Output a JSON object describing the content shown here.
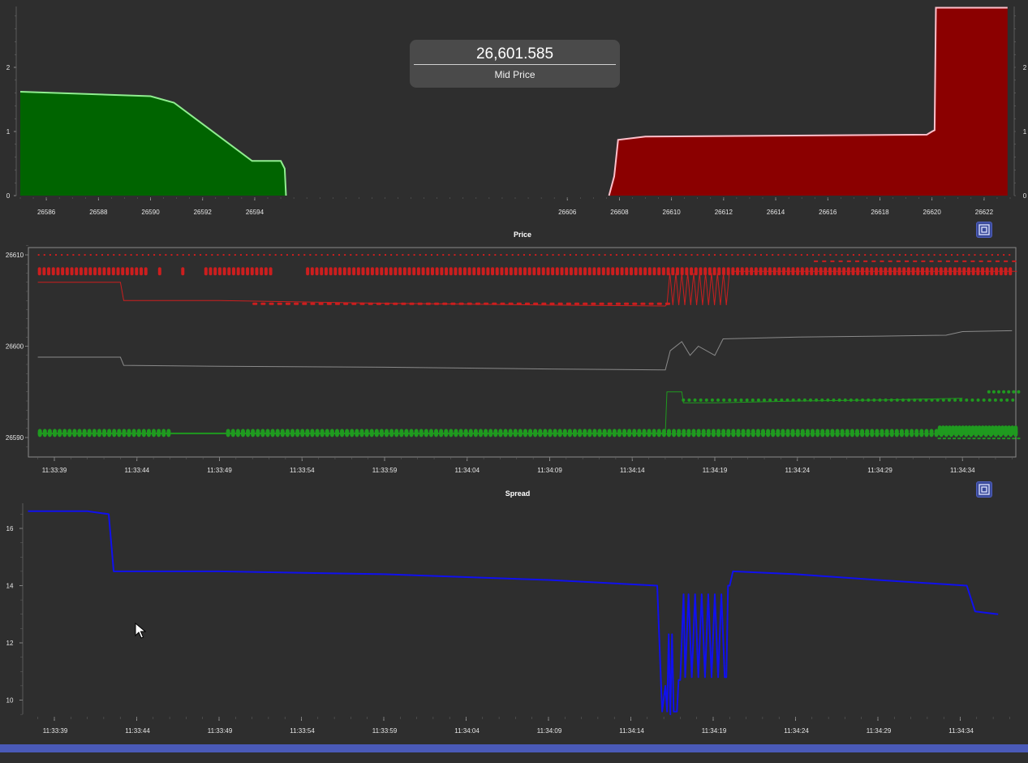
{
  "mid_price": {
    "value": "26,601.585",
    "label": "Mid Price"
  },
  "colors": {
    "bid_fill": "#006400",
    "bid_line": "#90ee90",
    "ask_fill": "#8b0000",
    "ask_line": "#ffc0cb",
    "ask_series": "#cc1e1e",
    "bid_series": "#1f9a1f",
    "mid_series": "#8a8a8a",
    "spread_series": "#1010ee"
  },
  "icons": {
    "reset_zoom": "reset-zoom-icon",
    "cursor": "mouse-pointer-icon"
  },
  "chart_data": [
    {
      "type": "area",
      "title": "",
      "xlim": [
        26585,
        26623
      ],
      "ylim": [
        0,
        3
      ],
      "yticks": [
        "0",
        "1",
        "2"
      ],
      "xticks": [
        "26586",
        "26588",
        "26590",
        "26592",
        "26594",
        "26606",
        "26608",
        "26610",
        "26612",
        "26614",
        "26616",
        "26618",
        "26620",
        "26622"
      ],
      "grid": false,
      "series": [
        {
          "side": "bid",
          "x": [
            26585,
            26590,
            26590.9,
            26593.9,
            26595,
            26595.15,
            26595.2
          ],
          "y": [
            1.62,
            1.55,
            1.45,
            0.54,
            0.54,
            0.42,
            0.0
          ]
        },
        {
          "side": "ask",
          "x": [
            26607.6,
            26607.8,
            26607.95,
            26609,
            26619.8,
            26620.0,
            26620.1,
            26620.15,
            26622.9
          ],
          "y": [
            0.0,
            0.3,
            0.87,
            0.92,
            0.95,
            1.0,
            1.02,
            2.93,
            2.93
          ]
        }
      ]
    },
    {
      "type": "line",
      "title": "Price",
      "ylim": [
        26588.9,
        26611.1
      ],
      "yticks": [
        "26590",
        "26600",
        "26610"
      ],
      "xticks": [
        "11:33:39",
        "11:33:44",
        "11:33:49",
        "11:33:54",
        "11:33:59",
        "11:34:04",
        "11:34:09",
        "11:34:14",
        "11:34:19",
        "11:34:24",
        "11:34:29",
        "11:34:34"
      ],
      "xlim_seconds_from_first_tick": [
        -1.5,
        58.7
      ],
      "grid": false,
      "series": [
        {
          "role": "ask",
          "line_x": [
            -1,
            4,
            4.2,
            10,
            20,
            30,
            37,
            37.1
          ],
          "line_y": [
            26607,
            26607,
            26605,
            26605,
            26604.7,
            26604.5,
            26604.4,
            26604.6
          ]
        },
        {
          "role": "mid",
          "x": [
            -1,
            4,
            4.2,
            10,
            20,
            30,
            37,
            37.3,
            38,
            38.5,
            39,
            40,
            40.5,
            45,
            50,
            54,
            55,
            58
          ],
          "y": [
            26598.8,
            26598.8,
            26597.9,
            26597.8,
            26597.7,
            26597.5,
            26597.4,
            26599.5,
            26600.5,
            26599,
            26600,
            26599,
            26600.8,
            26601,
            26601.1,
            26601.2,
            26601.6,
            26601.7
          ]
        },
        {
          "role": "bid",
          "line_x": [
            -1,
            37,
            37.1,
            38,
            38.1,
            40,
            45,
            50,
            55
          ],
          "line_y": [
            26590.5,
            26590.5,
            26595,
            26595,
            26593.8,
            26593.8,
            26594,
            26594.1,
            26594.3
          ]
        }
      ]
    },
    {
      "type": "line",
      "title": "Spread",
      "ylim": [
        9.5,
        16.8
      ],
      "yticks": [
        "10",
        "12",
        "14",
        "16"
      ],
      "xticks": [
        "11:33:39",
        "11:33:44",
        "11:33:49",
        "11:33:54",
        "11:33:59",
        "11:34:04",
        "11:34:09",
        "11:34:14",
        "11:34:19",
        "11:34:24",
        "11:34:29",
        "11:34:34"
      ],
      "xlim_seconds_from_first_tick": [
        -1.6,
        58.7
      ],
      "grid": false,
      "series": [
        {
          "role": "spread",
          "x": [
            -1.6,
            2,
            3.3,
            3.6,
            10,
            20,
            30,
            36.6,
            36.9,
            37.1,
            37.2,
            37.3,
            37.4,
            37.5,
            37.6,
            37.7,
            37.8,
            37.9,
            38.0,
            38.2,
            38.3,
            38.5,
            38.7,
            38.9,
            39.1,
            39.3,
            39.5,
            39.7,
            39.9,
            40.1,
            40.3,
            40.5,
            40.7,
            40.8,
            40.9,
            41.0,
            41.2,
            45,
            50,
            55.4,
            55.9,
            57.3
          ],
          "y": [
            16.6,
            16.6,
            16.5,
            14.5,
            14.5,
            14.4,
            14.2,
            14.0,
            9.6,
            10.5,
            9.6,
            12.3,
            9.5,
            12.3,
            9.6,
            9.6,
            9.6,
            10.7,
            10.7,
            13.7,
            10.8,
            13.7,
            10.8,
            13.7,
            10.8,
            13.7,
            10.8,
            13.7,
            10.8,
            13.7,
            10.8,
            13.7,
            10.8,
            10.8,
            14.0,
            14.0,
            14.5,
            14.4,
            14.2,
            14.0,
            13.1,
            13.0
          ]
        }
      ]
    }
  ]
}
